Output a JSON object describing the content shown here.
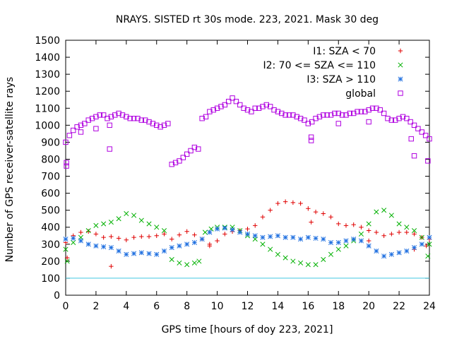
{
  "chart_data": {
    "type": "scatter",
    "title": "NRAYS. SISTED rt 30s mode. 223, 2021. Mask 30 deg",
    "xlabel": "GPS time [hours of doy 223, 2021]",
    "ylabel": "Number of GPS receiver-satellite rays",
    "xlim": [
      0,
      24
    ],
    "ylim": [
      0,
      1500
    ],
    "xticks": [
      0,
      2,
      4,
      6,
      8,
      10,
      12,
      14,
      16,
      18,
      20,
      22,
      24
    ],
    "yticks": [
      0,
      100,
      200,
      300,
      400,
      500,
      600,
      700,
      800,
      900,
      1000,
      1100,
      1200,
      1300,
      1400,
      1500
    ],
    "legend_position": "top-right",
    "reference_line": {
      "y": 100,
      "color": "#40c8e0"
    },
    "series": [
      {
        "name": "I1: SZA < 70",
        "marker": "plus",
        "color": "#e00000",
        "x": [
          0.0,
          0.5,
          1.0,
          1.5,
          2.0,
          2.5,
          3.0,
          3.5,
          4.0,
          4.5,
          5.0,
          5.5,
          6.0,
          6.5,
          7.0,
          7.5,
          8.0,
          8.5,
          9.0,
          9.5,
          10.0,
          10.5,
          11.0,
          11.5,
          12.0,
          12.5,
          13.0,
          13.5,
          14.0,
          14.5,
          15.0,
          15.5,
          16.0,
          16.5,
          17.0,
          17.5,
          18.0,
          18.5,
          19.0,
          19.5,
          20.0,
          20.5,
          21.0,
          21.5,
          22.0,
          22.5,
          23.0,
          23.5,
          24.0,
          0.1,
          3.0,
          9.5,
          16.2,
          20.0,
          23.0,
          23.8
        ],
        "y": [
          310,
          350,
          370,
          375,
          360,
          340,
          345,
          335,
          325,
          340,
          345,
          345,
          350,
          360,
          330,
          355,
          375,
          355,
          330,
          300,
          320,
          360,
          375,
          380,
          390,
          410,
          460,
          500,
          540,
          550,
          545,
          540,
          510,
          490,
          480,
          460,
          420,
          410,
          415,
          400,
          380,
          370,
          350,
          360,
          370,
          370,
          360,
          340,
          330,
          220,
          170,
          290,
          430,
          320,
          270,
          290
        ]
      },
      {
        "name": "I2: 70 <= SZA <= 110",
        "marker": "cross",
        "color": "#00b000",
        "x": [
          0.0,
          0.5,
          1.0,
          1.5,
          2.0,
          2.5,
          3.0,
          3.5,
          4.0,
          4.5,
          5.0,
          5.5,
          6.0,
          6.5,
          7.0,
          7.5,
          8.0,
          8.5,
          8.8,
          9.2,
          9.6,
          10.0,
          10.5,
          11.0,
          11.5,
          12.0,
          12.5,
          13.0,
          13.5,
          14.0,
          14.5,
          15.0,
          15.5,
          16.0,
          16.5,
          17.0,
          17.5,
          18.0,
          18.5,
          19.0,
          19.5,
          20.0,
          20.5,
          21.0,
          21.5,
          22.0,
          22.5,
          23.0,
          23.5,
          24.0,
          0.1,
          23.9
        ],
        "y": [
          270,
          310,
          340,
          380,
          410,
          420,
          430,
          450,
          480,
          470,
          440,
          420,
          400,
          380,
          210,
          190,
          180,
          190,
          200,
          370,
          390,
          400,
          400,
          400,
          380,
          350,
          330,
          300,
          270,
          240,
          220,
          200,
          190,
          180,
          180,
          210,
          240,
          270,
          290,
          320,
          360,
          420,
          490,
          500,
          470,
          420,
          400,
          380,
          340,
          300,
          200,
          230
        ]
      },
      {
        "name": "I3: SZA > 110",
        "marker": "star",
        "color": "#2070e0",
        "x": [
          0.0,
          0.5,
          1.0,
          1.5,
          2.0,
          2.5,
          3.0,
          3.5,
          4.0,
          4.5,
          5.0,
          5.5,
          6.0,
          6.5,
          7.0,
          7.5,
          8.0,
          8.5,
          9.0,
          9.5,
          10.0,
          10.5,
          11.0,
          11.5,
          12.0,
          12.5,
          13.0,
          13.5,
          14.0,
          14.5,
          15.0,
          15.5,
          16.0,
          16.5,
          17.0,
          17.5,
          18.0,
          18.5,
          19.0,
          19.5,
          20.0,
          20.5,
          21.0,
          21.5,
          22.0,
          22.5,
          23.0,
          23.5,
          24.0
        ],
        "y": [
          330,
          335,
          320,
          300,
          290,
          285,
          280,
          260,
          240,
          245,
          250,
          245,
          240,
          260,
          280,
          290,
          300,
          310,
          330,
          370,
          390,
          395,
          385,
          370,
          360,
          350,
          340,
          345,
          350,
          340,
          340,
          330,
          340,
          335,
          330,
          310,
          310,
          320,
          330,
          320,
          290,
          260,
          230,
          240,
          250,
          260,
          280,
          300,
          340
        ]
      },
      {
        "name": "global",
        "marker": "square",
        "color": "#b000e0",
        "x": [
          0.0,
          0.25,
          0.5,
          0.75,
          1.0,
          1.25,
          1.5,
          1.75,
          2.0,
          2.25,
          2.5,
          2.75,
          3.0,
          3.25,
          3.5,
          3.75,
          4.0,
          4.25,
          4.5,
          4.75,
          5.0,
          5.25,
          5.5,
          5.75,
          6.0,
          6.25,
          6.5,
          6.75,
          7.0,
          7.25,
          7.5,
          7.75,
          8.0,
          8.25,
          8.5,
          8.75,
          9.0,
          9.25,
          9.5,
          9.75,
          10.0,
          10.25,
          10.5,
          10.75,
          11.0,
          11.25,
          11.5,
          11.75,
          12.0,
          12.25,
          12.5,
          12.75,
          13.0,
          13.25,
          13.5,
          13.75,
          14.0,
          14.25,
          14.5,
          14.75,
          15.0,
          15.25,
          15.5,
          15.75,
          16.0,
          16.25,
          16.5,
          16.75,
          17.0,
          17.25,
          17.5,
          17.75,
          18.0,
          18.25,
          18.5,
          18.75,
          19.0,
          19.25,
          19.5,
          19.75,
          20.0,
          20.25,
          20.5,
          20.75,
          21.0,
          21.25,
          21.5,
          21.75,
          22.0,
          22.25,
          22.5,
          22.75,
          23.0,
          23.25,
          23.5,
          23.75,
          24.0,
          0.05,
          0.05,
          1.0,
          2.0,
          2.9,
          2.9,
          16.2,
          16.2,
          18.0,
          20.0,
          22.8,
          23.0,
          23.9
        ],
        "y": [
          900,
          940,
          970,
          990,
          1000,
          1010,
          1030,
          1040,
          1050,
          1060,
          1060,
          1040,
          1050,
          1060,
          1070,
          1060,
          1050,
          1040,
          1040,
          1040,
          1030,
          1030,
          1020,
          1010,
          1000,
          990,
          1000,
          1010,
          770,
          780,
          790,
          810,
          830,
          850,
          870,
          860,
          1040,
          1050,
          1080,
          1090,
          1100,
          1110,
          1120,
          1140,
          1160,
          1140,
          1120,
          1100,
          1090,
          1080,
          1100,
          1100,
          1110,
          1120,
          1110,
          1090,
          1080,
          1070,
          1060,
          1060,
          1060,
          1050,
          1040,
          1030,
          1010,
          1020,
          1040,
          1050,
          1060,
          1060,
          1060,
          1070,
          1070,
          1060,
          1060,
          1070,
          1070,
          1080,
          1080,
          1080,
          1090,
          1100,
          1100,
          1090,
          1070,
          1040,
          1030,
          1030,
          1040,
          1050,
          1040,
          1020,
          1000,
          980,
          960,
          940,
          920,
          760,
          780,
          960,
          980,
          860,
          1000,
          930,
          910,
          1010,
          1020,
          920,
          820,
          790
        ]
      }
    ]
  }
}
